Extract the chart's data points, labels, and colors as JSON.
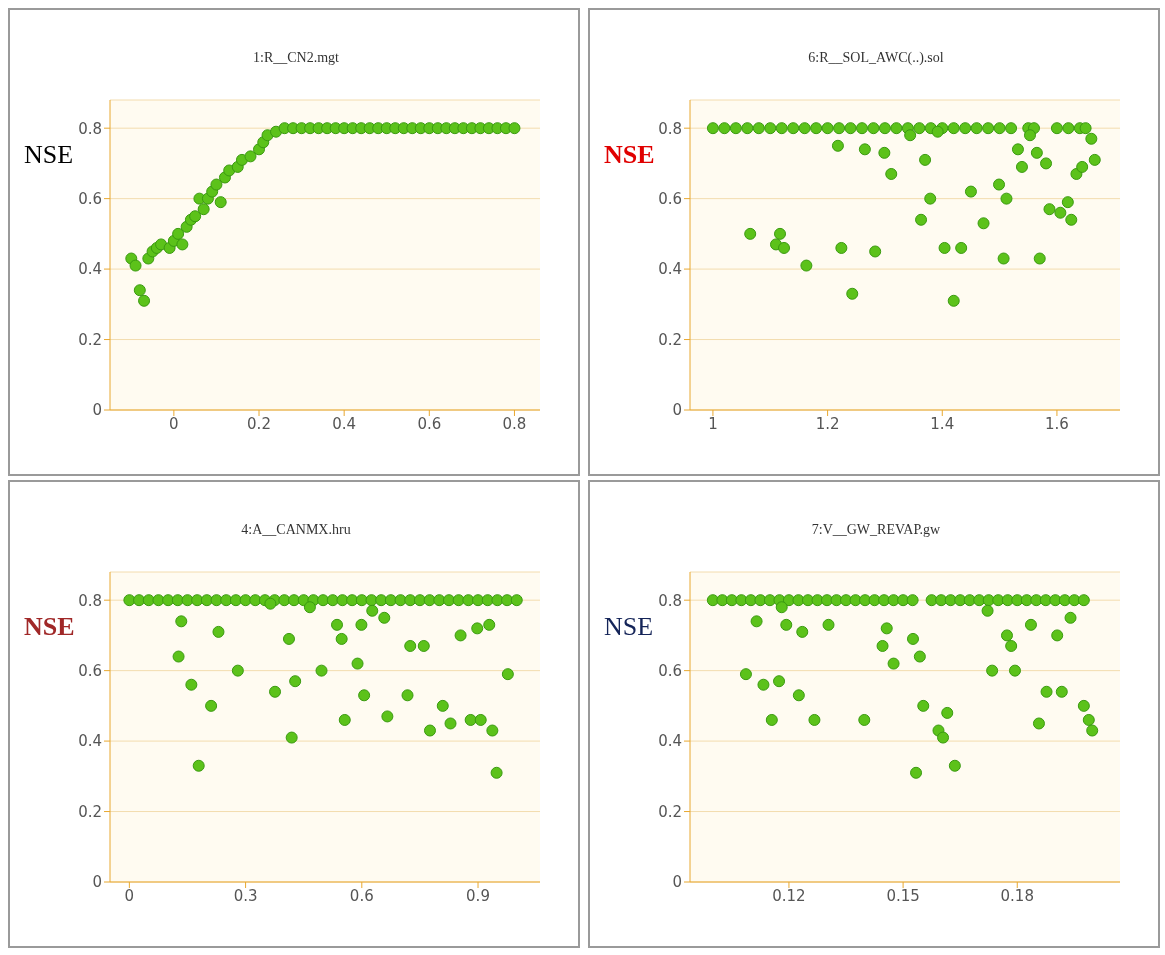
{
  "chart_data": [
    {
      "type": "scatter",
      "title": "1:R__CN2.mgt",
      "ylabel": "NSE",
      "color": "#5cc21a",
      "marker": "circle",
      "grid": "y",
      "xlim": [
        -0.15,
        0.86
      ],
      "ylim": [
        0,
        0.88
      ],
      "xticks": [
        0,
        0.2,
        0.4,
        0.6,
        0.8
      ],
      "yticks": [
        0,
        0.2,
        0.4,
        0.6,
        0.8
      ],
      "x": [
        -0.1,
        -0.09,
        -0.08,
        -0.07,
        -0.06,
        -0.05,
        -0.04,
        -0.03,
        -0.01,
        0,
        0.01,
        0.02,
        0.03,
        0.04,
        0.05,
        0.06,
        0.07,
        0.08,
        0.09,
        0.1,
        0.11,
        0.12,
        0.13,
        0.15,
        0.16,
        0.18,
        0.2,
        0.21,
        0.22,
        0.24,
        0.26,
        0.28,
        0.3,
        0.32,
        0.34,
        0.36,
        0.38,
        0.4,
        0.42,
        0.44,
        0.46,
        0.48,
        0.5,
        0.52,
        0.54,
        0.56,
        0.58,
        0.6,
        0.62,
        0.64,
        0.66,
        0.68,
        0.7,
        0.72,
        0.74,
        0.76,
        0.78,
        0.8
      ],
      "values": [
        0.43,
        0.41,
        0.34,
        0.31,
        0.43,
        0.45,
        0.46,
        0.47,
        0.46,
        0.48,
        0.5,
        0.47,
        0.52,
        0.54,
        0.55,
        0.6,
        0.57,
        0.6,
        0.62,
        0.64,
        0.59,
        0.66,
        0.68,
        0.69,
        0.71,
        0.72,
        0.74,
        0.76,
        0.78,
        0.79,
        0.8,
        0.8,
        0.8,
        0.8,
        0.8,
        0.8,
        0.8,
        0.8,
        0.8,
        0.8,
        0.8,
        0.8,
        0.8,
        0.8,
        0.8,
        0.8,
        0.8,
        0.8,
        0.8,
        0.8,
        0.8,
        0.8,
        0.8,
        0.8,
        0.8,
        0.8,
        0.8,
        0.8
      ]
    },
    {
      "type": "scatter",
      "title": "6:R__SOL_AWC(..).sol",
      "ylabel": "NSE",
      "color": "#5cc21a",
      "marker": "circle",
      "grid": "y",
      "xlim": [
        0.96,
        1.71
      ],
      "ylim": [
        0,
        0.88
      ],
      "xticks": [
        1,
        1.2,
        1.4,
        1.6
      ],
      "yticks": [
        0,
        0.2,
        0.4,
        0.6,
        0.8
      ],
      "x": [
        1,
        1.02,
        1.04,
        1.06,
        1.08,
        1.1,
        1.12,
        1.14,
        1.16,
        1.18,
        1.2,
        1.22,
        1.24,
        1.26,
        1.28,
        1.3,
        1.32,
        1.34,
        1.36,
        1.38,
        1.4,
        1.42,
        1.44,
        1.46,
        1.48,
        1.5,
        1.52,
        1.55,
        1.56,
        1.6,
        1.62,
        1.64,
        1.65,
        1.065,
        1.117,
        1.11,
        1.124,
        1.163,
        1.218,
        1.224,
        1.243,
        1.265,
        1.283,
        1.299,
        1.311,
        1.344,
        1.363,
        1.37,
        1.379,
        1.392,
        1.404,
        1.42,
        1.433,
        1.45,
        1.472,
        1.499,
        1.507,
        1.512,
        1.532,
        1.539,
        1.553,
        1.565,
        1.57,
        1.581,
        1.587,
        1.606,
        1.619,
        1.625,
        1.634,
        1.644,
        1.66,
        1.666
      ],
      "values": [
        0.8,
        0.8,
        0.8,
        0.8,
        0.8,
        0.8,
        0.8,
        0.8,
        0.8,
        0.8,
        0.8,
        0.8,
        0.8,
        0.8,
        0.8,
        0.8,
        0.8,
        0.8,
        0.8,
        0.8,
        0.8,
        0.8,
        0.8,
        0.8,
        0.8,
        0.8,
        0.8,
        0.8,
        0.8,
        0.8,
        0.8,
        0.8,
        0.8,
        0.5,
        0.5,
        0.47,
        0.46,
        0.41,
        0.75,
        0.46,
        0.33,
        0.74,
        0.45,
        0.73,
        0.67,
        0.78,
        0.54,
        0.71,
        0.6,
        0.79,
        0.46,
        0.31,
        0.46,
        0.62,
        0.53,
        0.64,
        0.43,
        0.6,
        0.74,
        0.69,
        0.78,
        0.73,
        0.43,
        0.7,
        0.57,
        0.56,
        0.59,
        0.54,
        0.67,
        0.69,
        0.77,
        0.71
      ]
    },
    {
      "type": "scatter",
      "title": "4:A__CANMX.hru",
      "ylabel": "NSE",
      "color": "#5cc21a",
      "marker": "circle",
      "grid": "y",
      "xlim": [
        -0.05,
        1.06
      ],
      "ylim": [
        0,
        0.88
      ],
      "xticks": [
        0,
        0.3,
        0.6,
        0.9
      ],
      "yticks": [
        0,
        0.2,
        0.4,
        0.6,
        0.8
      ],
      "x": [
        0,
        0.025,
        0.05,
        0.075,
        0.1,
        0.125,
        0.15,
        0.175,
        0.2,
        0.225,
        0.25,
        0.275,
        0.3,
        0.325,
        0.35,
        0.375,
        0.4,
        0.425,
        0.45,
        0.475,
        0.5,
        0.525,
        0.55,
        0.575,
        0.6,
        0.625,
        0.65,
        0.675,
        0.7,
        0.725,
        0.75,
        0.775,
        0.8,
        0.825,
        0.85,
        0.875,
        0.9,
        0.925,
        0.95,
        0.975,
        1,
        0.134,
        0.127,
        0.16,
        0.179,
        0.211,
        0.23,
        0.28,
        0.364,
        0.376,
        0.412,
        0.419,
        0.428,
        0.466,
        0.496,
        0.536,
        0.548,
        0.556,
        0.589,
        0.599,
        0.606,
        0.627,
        0.658,
        0.666,
        0.725,
        0.718,
        0.76,
        0.776,
        0.809,
        0.829,
        0.855,
        0.881,
        0.898,
        0.907,
        0.929,
        0.937,
        0.948,
        0.977
      ],
      "values": [
        0.8,
        0.8,
        0.8,
        0.8,
        0.8,
        0.8,
        0.8,
        0.8,
        0.8,
        0.8,
        0.8,
        0.8,
        0.8,
        0.8,
        0.8,
        0.8,
        0.8,
        0.8,
        0.8,
        0.8,
        0.8,
        0.8,
        0.8,
        0.8,
        0.8,
        0.8,
        0.8,
        0.8,
        0.8,
        0.8,
        0.8,
        0.8,
        0.8,
        0.8,
        0.8,
        0.8,
        0.8,
        0.8,
        0.8,
        0.8,
        0.8,
        0.74,
        0.64,
        0.56,
        0.33,
        0.5,
        0.71,
        0.6,
        0.79,
        0.54,
        0.69,
        0.41,
        0.57,
        0.78,
        0.6,
        0.73,
        0.69,
        0.46,
        0.62,
        0.73,
        0.53,
        0.77,
        0.75,
        0.47,
        0.67,
        0.53,
        0.67,
        0.43,
        0.5,
        0.45,
        0.7,
        0.46,
        0.72,
        0.46,
        0.73,
        0.43,
        0.31,
        0.59
      ]
    },
    {
      "type": "scatter",
      "title": "7:V__GW_REVAP.gw",
      "ylabel": "NSE",
      "color": "#5cc21a",
      "marker": "circle",
      "grid": "y",
      "xlim": [
        0.094,
        0.207
      ],
      "ylim": [
        0,
        0.88
      ],
      "xticks": [
        0.12,
        0.15,
        0.18
      ],
      "yticks": [
        0,
        0.2,
        0.4,
        0.6,
        0.8
      ],
      "x": [
        0.1,
        0.1025,
        0.105,
        0.1075,
        0.11,
        0.1125,
        0.115,
        0.1175,
        0.12,
        0.1225,
        0.125,
        0.1275,
        0.13,
        0.1325,
        0.135,
        0.1375,
        0.14,
        0.1425,
        0.145,
        0.1475,
        0.15,
        0.1525,
        0.1575,
        0.16,
        0.1625,
        0.165,
        0.1675,
        0.17,
        0.1725,
        0.175,
        0.1775,
        0.18,
        0.1825,
        0.185,
        0.1875,
        0.19,
        0.1925,
        0.195,
        0.1975,
        0.1115,
        0.1087,
        0.1133,
        0.1155,
        0.1174,
        0.1181,
        0.1193,
        0.1226,
        0.1235,
        0.1267,
        0.1304,
        0.1398,
        0.1446,
        0.1457,
        0.1475,
        0.1526,
        0.1534,
        0.1544,
        0.1553,
        0.1593,
        0.1605,
        0.1616,
        0.1636,
        0.1722,
        0.1734,
        0.1773,
        0.1784,
        0.1794,
        0.1836,
        0.1857,
        0.1877,
        0.1905,
        0.1917,
        0.194,
        0.1975,
        0.1988,
        0.1997
      ],
      "values": [
        0.8,
        0.8,
        0.8,
        0.8,
        0.8,
        0.8,
        0.8,
        0.8,
        0.8,
        0.8,
        0.8,
        0.8,
        0.8,
        0.8,
        0.8,
        0.8,
        0.8,
        0.8,
        0.8,
        0.8,
        0.8,
        0.8,
        0.8,
        0.8,
        0.8,
        0.8,
        0.8,
        0.8,
        0.8,
        0.8,
        0.8,
        0.8,
        0.8,
        0.8,
        0.8,
        0.8,
        0.8,
        0.8,
        0.8,
        0.74,
        0.59,
        0.56,
        0.46,
        0.57,
        0.78,
        0.73,
        0.53,
        0.71,
        0.46,
        0.73,
        0.46,
        0.67,
        0.72,
        0.62,
        0.69,
        0.31,
        0.64,
        0.5,
        0.43,
        0.41,
        0.48,
        0.33,
        0.77,
        0.6,
        0.7,
        0.67,
        0.6,
        0.73,
        0.45,
        0.54,
        0.7,
        0.54,
        0.75,
        0.5,
        0.46,
        0.43
      ]
    }
  ]
}
